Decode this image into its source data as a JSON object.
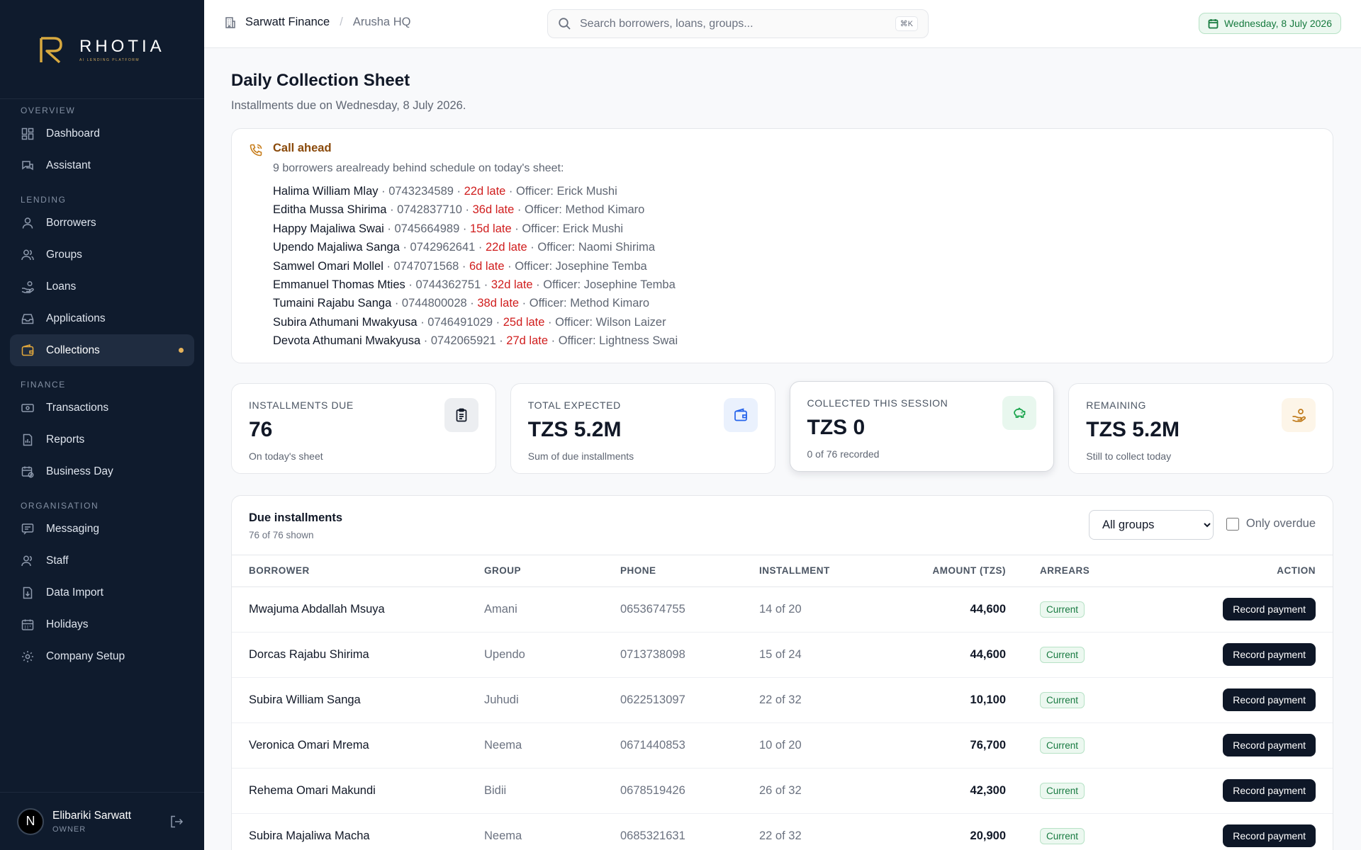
{
  "brand": {
    "name": "RHOTIA",
    "tagline": "AI LENDING PLATFORM"
  },
  "nav": {
    "sections": [
      {
        "heading": "OVERVIEW",
        "items": [
          {
            "label": "Dashboard"
          },
          {
            "label": "Assistant"
          }
        ]
      },
      {
        "heading": "LENDING",
        "items": [
          {
            "label": "Borrowers"
          },
          {
            "label": "Groups"
          },
          {
            "label": "Loans"
          },
          {
            "label": "Applications"
          },
          {
            "label": "Collections",
            "active": true
          }
        ]
      },
      {
        "heading": "FINANCE",
        "items": [
          {
            "label": "Transactions"
          },
          {
            "label": "Reports"
          },
          {
            "label": "Business Day"
          }
        ]
      },
      {
        "heading": "ORGANISATION",
        "items": [
          {
            "label": "Messaging"
          },
          {
            "label": "Staff"
          },
          {
            "label": "Data Import"
          },
          {
            "label": "Holidays"
          },
          {
            "label": "Company Setup"
          }
        ]
      }
    ]
  },
  "user": {
    "initial": "N",
    "name": "Elibariki Sarwatt",
    "role": "OWNER"
  },
  "topbar": {
    "org": "Sarwatt Finance",
    "separator": "/",
    "branch": "Arusha HQ",
    "search_placeholder": "Search borrowers, loans, groups...",
    "shortcut": "⌘K",
    "date": "Wednesday, 8 July 2026"
  },
  "page": {
    "title": "Daily Collection Sheet",
    "subtitle": "Installments due on Wednesday, 8 July 2026."
  },
  "alert": {
    "title": "Call ahead",
    "description": "9 borrowers arealready behind schedule on today's sheet:",
    "items": [
      {
        "name": "Halima William Mlay",
        "phone": "0743234589",
        "late": "22d late",
        "officer": "Officer: Erick Mushi"
      },
      {
        "name": "Editha Mussa Shirima",
        "phone": "0742837710",
        "late": "36d late",
        "officer": "Officer: Method Kimaro"
      },
      {
        "name": "Happy Majaliwa Swai",
        "phone": "0745664989",
        "late": "15d late",
        "officer": "Officer: Erick Mushi"
      },
      {
        "name": "Upendo Majaliwa Sanga",
        "phone": "0742962641",
        "late": "22d late",
        "officer": "Officer: Naomi Shirima"
      },
      {
        "name": "Samwel Omari Mollel",
        "phone": "0747071568",
        "late": "6d late",
        "officer": "Officer: Josephine Temba"
      },
      {
        "name": "Emmanuel Thomas Mties",
        "phone": "0744362751",
        "late": "32d late",
        "officer": "Officer: Josephine Temba"
      },
      {
        "name": "Tumaini Rajabu Sanga",
        "phone": "0744800028",
        "late": "38d late",
        "officer": "Officer: Method Kimaro"
      },
      {
        "name": "Subira Athumani Mwakyusa",
        "phone": "0746491029",
        "late": "25d late",
        "officer": "Officer: Wilson Laizer"
      },
      {
        "name": "Devota Athumani Mwakyusa",
        "phone": "0742065921",
        "late": "27d late",
        "officer": "Officer: Lightness Swai"
      }
    ]
  },
  "stats": [
    {
      "label": "INSTALLMENTS DUE",
      "value": "76",
      "hint": "On today's sheet",
      "icon": "clipboard-icon",
      "icon_bg": "#eceef1",
      "icon_color": "#111827"
    },
    {
      "label": "TOTAL EXPECTED",
      "value": "TZS 5.2M",
      "hint": "Sum of due installments",
      "icon": "wallet-icon",
      "icon_bg": "#eaf1fd",
      "icon_color": "#2563eb"
    },
    {
      "label": "COLLECTED THIS SESSION",
      "value": "TZS 0",
      "hint": "0 of 76 recorded",
      "icon": "piggy-bank-icon",
      "icon_bg": "#e8f7ee",
      "icon_color": "#16a34a"
    },
    {
      "label": "REMAINING",
      "value": "TZS 5.2M",
      "hint": "Still to collect today",
      "icon": "hand-coins-icon",
      "icon_bg": "#fdf5e8",
      "icon_color": "#c07a1a"
    }
  ],
  "due": {
    "title": "Due installments",
    "count": "76 of 76 shown",
    "filter_value": "All groups",
    "overdue_label": "Only overdue",
    "columns": [
      "BORROWER",
      "GROUP",
      "PHONE",
      "INSTALLMENT",
      "AMOUNT (TZS)",
      "ARREARS",
      "ACTION"
    ],
    "rows": [
      {
        "borrower": "Mwajuma Abdallah Msuya",
        "group": "Amani",
        "phone": "0653674755",
        "installment": "14 of 20",
        "amount": "44,600",
        "arrears": "Current",
        "action": "Record payment"
      },
      {
        "borrower": "Dorcas Rajabu Shirima",
        "group": "Upendo",
        "phone": "0713738098",
        "installment": "15 of 24",
        "amount": "44,600",
        "arrears": "Current",
        "action": "Record payment"
      },
      {
        "borrower": "Subira William Sanga",
        "group": "Juhudi",
        "phone": "0622513097",
        "installment": "22 of 32",
        "amount": "10,100",
        "arrears": "Current",
        "action": "Record payment"
      },
      {
        "borrower": "Veronica Omari Mrema",
        "group": "Neema",
        "phone": "0671440853",
        "installment": "10 of 20",
        "amount": "76,700",
        "arrears": "Current",
        "action": "Record payment"
      },
      {
        "borrower": "Rehema Omari Makundi",
        "group": "Bidii",
        "phone": "0678519426",
        "installment": "26 of 32",
        "amount": "42,300",
        "arrears": "Current",
        "action": "Record payment"
      },
      {
        "borrower": "Subira Majaliwa Macha",
        "group": "Neema",
        "phone": "0685321631",
        "installment": "22 of 32",
        "amount": "20,900",
        "arrears": "Current",
        "action": "Record payment"
      }
    ]
  }
}
